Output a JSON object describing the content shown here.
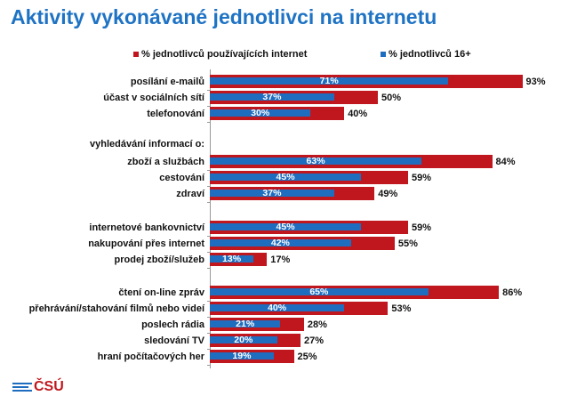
{
  "chart_data": {
    "type": "bar",
    "orientation": "horizontal",
    "title": "Aktivity vykonávané jednotlivci na internetu",
    "legend": {
      "placement": "top",
      "entries": [
        "% jednotlivců používajících internet",
        "% jednotlivců 16+"
      ]
    },
    "xlim": [
      0,
      100
    ],
    "rows": [
      {
        "label": "posílání e-mailů",
        "internet": 93,
        "all": 71,
        "internet_label": "93%",
        "all_label": "71%"
      },
      {
        "label": "účast v sociálních sítí",
        "internet": 50,
        "all": 37,
        "internet_label": "50%",
        "all_label": "37%"
      },
      {
        "label": "telefonování",
        "internet": 40,
        "all": 30,
        "internet_label": "40%",
        "all_label": "30%"
      },
      {
        "label": "vyhledávání informací o:",
        "header": true
      },
      {
        "label": "zboží a službách",
        "internet": 84,
        "all": 63,
        "internet_label": "84%",
        "all_label": "63%"
      },
      {
        "label": "cestování",
        "internet": 59,
        "all": 45,
        "internet_label": "59%",
        "all_label": "45%"
      },
      {
        "label": "zdraví",
        "internet": 49,
        "all": 37,
        "internet_label": "49%",
        "all_label": "37%"
      },
      {
        "label": "internetové bankovnictví",
        "internet": 59,
        "all": 45,
        "internet_label": "59%",
        "all_label": "45%"
      },
      {
        "label": "nakupování přes internet",
        "internet": 55,
        "all": 42,
        "internet_label": "55%",
        "all_label": "42%"
      },
      {
        "label": "prodej zboží/služeb",
        "internet": 17,
        "all": 13,
        "internet_label": "17%",
        "all_label": "13%"
      },
      {
        "label": "čtení on-line zpráv",
        "internet": 86,
        "all": 65,
        "internet_label": "86%",
        "all_label": "65%"
      },
      {
        "label": "přehrávání/stahování filmů nebo videí",
        "internet": 53,
        "all": 40,
        "internet_label": "53%",
        "all_label": "40%"
      },
      {
        "label": "poslech rádia",
        "internet": 28,
        "all": 21,
        "internet_label": "28%",
        "all_label": "21%"
      },
      {
        "label": "sledování TV",
        "internet": 27,
        "all": 20,
        "internet_label": "27%",
        "all_label": "20%"
      },
      {
        "label": "hraní počítačových her",
        "internet": 25,
        "all": 19,
        "internet_label": "25%",
        "all_label": "19%"
      }
    ],
    "colors": {
      "internet": "#c0171e",
      "all": "#1f6dbf"
    }
  },
  "logo": "ČSÚ"
}
